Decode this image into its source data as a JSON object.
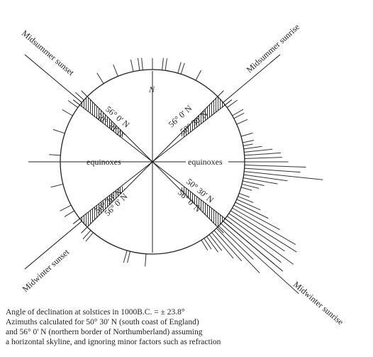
{
  "diagram": {
    "north": "N",
    "directions": {
      "midsummer_sunset": "Midsummer sunset",
      "midsummer_sunrise": "Midsummer sunrise",
      "midwinter_sunset": "Midwinter sunset",
      "midwinter_sunrise": "Midwinter sunrise"
    },
    "equinoxes": [
      "equinoxes",
      "equinoxes"
    ],
    "latitudes": {
      "north": "56° 0' N",
      "south": "50° 30' N"
    },
    "caption": [
      "Angle of declination at solstices in 1000B.C. = ± 23.8°",
      "Azimuths calculated for 50° 30' N (south coast of England)",
      "and 56° 0' N (northern border of Northumberland) assuming",
      "a horizontal skyline, and ignoring minor factors such as refraction"
    ]
  }
}
